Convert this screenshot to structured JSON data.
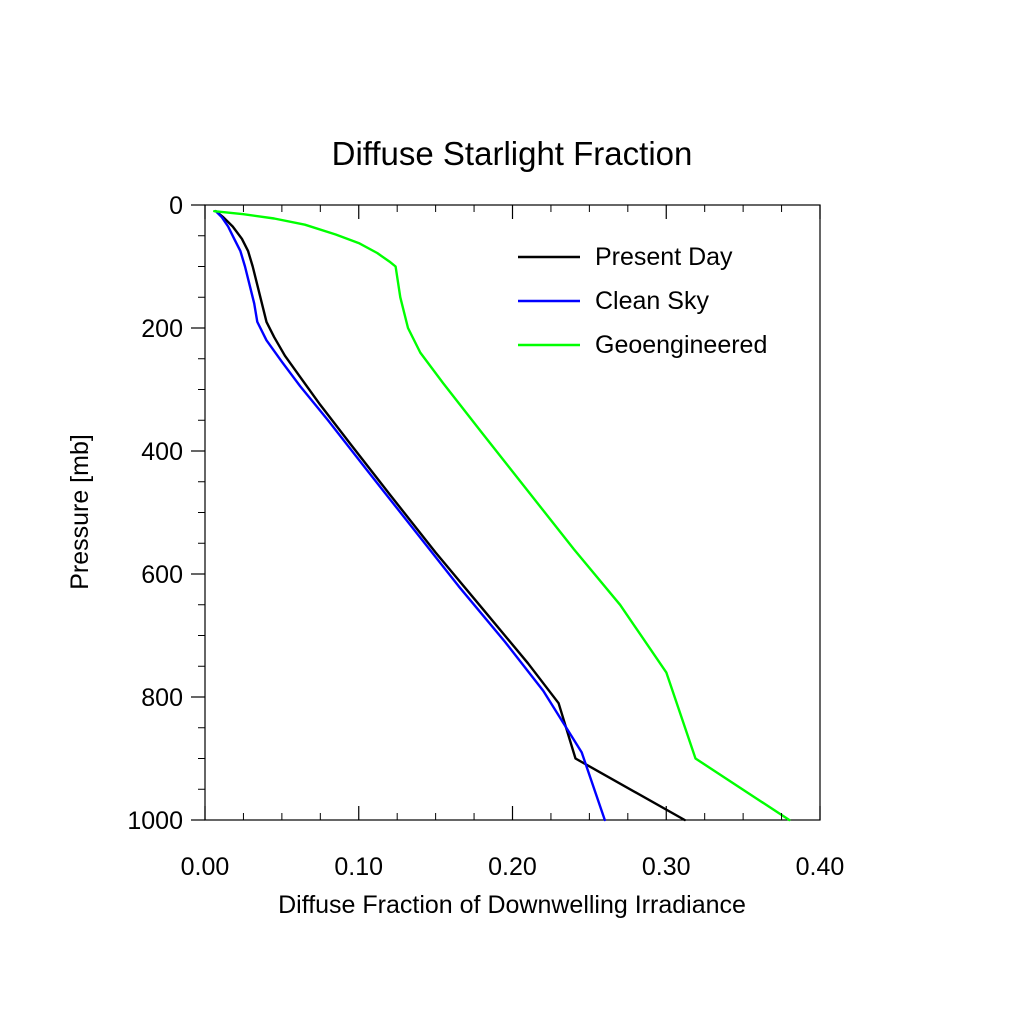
{
  "chart_data": {
    "type": "line",
    "title": "Diffuse Starlight Fraction",
    "xlabel": "Diffuse Fraction of Downwelling Irradiance",
    "ylabel": "Pressure [mb]",
    "xlim": [
      0.0,
      0.4
    ],
    "ylim": [
      0,
      1000
    ],
    "y_inverted": true,
    "grid": false,
    "legend_position": "top-right",
    "x_ticks": [
      0.0,
      0.1,
      0.2,
      0.3,
      0.4
    ],
    "x_tick_labels": [
      "0.00",
      "0.10",
      "0.20",
      "0.30",
      "0.40"
    ],
    "y_ticks": [
      0,
      200,
      400,
      600,
      800,
      1000
    ],
    "y_tick_labels": [
      "0",
      "200",
      "400",
      "600",
      "800",
      "1000"
    ],
    "series": [
      {
        "name": "Present Day",
        "color": "#000000",
        "points": [
          [
            0.007,
            10
          ],
          [
            0.012,
            20
          ],
          [
            0.018,
            35
          ],
          [
            0.024,
            55
          ],
          [
            0.028,
            75
          ],
          [
            0.031,
            100
          ],
          [
            0.034,
            130
          ],
          [
            0.037,
            160
          ],
          [
            0.04,
            190
          ],
          [
            0.045,
            215
          ],
          [
            0.052,
            245
          ],
          [
            0.062,
            280
          ],
          [
            0.075,
            325
          ],
          [
            0.095,
            390
          ],
          [
            0.12,
            470
          ],
          [
            0.15,
            565
          ],
          [
            0.18,
            655
          ],
          [
            0.21,
            745
          ],
          [
            0.23,
            810
          ],
          [
            0.241,
            900
          ],
          [
            0.312,
            1000
          ]
        ]
      },
      {
        "name": "Clean Sky",
        "color": "#0000ff",
        "points": [
          [
            0.007,
            10
          ],
          [
            0.011,
            20
          ],
          [
            0.015,
            35
          ],
          [
            0.019,
            55
          ],
          [
            0.023,
            75
          ],
          [
            0.026,
            100
          ],
          [
            0.029,
            130
          ],
          [
            0.032,
            160
          ],
          [
            0.034,
            190
          ],
          [
            0.04,
            220
          ],
          [
            0.05,
            255
          ],
          [
            0.062,
            295
          ],
          [
            0.08,
            350
          ],
          [
            0.105,
            430
          ],
          [
            0.135,
            525
          ],
          [
            0.165,
            620
          ],
          [
            0.195,
            710
          ],
          [
            0.22,
            790
          ],
          [
            0.245,
            890
          ],
          [
            0.26,
            1000
          ]
        ]
      },
      {
        "name": "Geoengineered",
        "color": "#00ff00",
        "points": [
          [
            0.006,
            10
          ],
          [
            0.025,
            15
          ],
          [
            0.045,
            22
          ],
          [
            0.065,
            32
          ],
          [
            0.085,
            48
          ],
          [
            0.1,
            62
          ],
          [
            0.112,
            78
          ],
          [
            0.12,
            92
          ],
          [
            0.124,
            100
          ],
          [
            0.127,
            150
          ],
          [
            0.132,
            200
          ],
          [
            0.14,
            240
          ],
          [
            0.155,
            290
          ],
          [
            0.18,
            370
          ],
          [
            0.21,
            465
          ],
          [
            0.24,
            560
          ],
          [
            0.27,
            650
          ],
          [
            0.3,
            760
          ],
          [
            0.319,
            900
          ],
          [
            0.38,
            1000
          ]
        ]
      }
    ]
  }
}
